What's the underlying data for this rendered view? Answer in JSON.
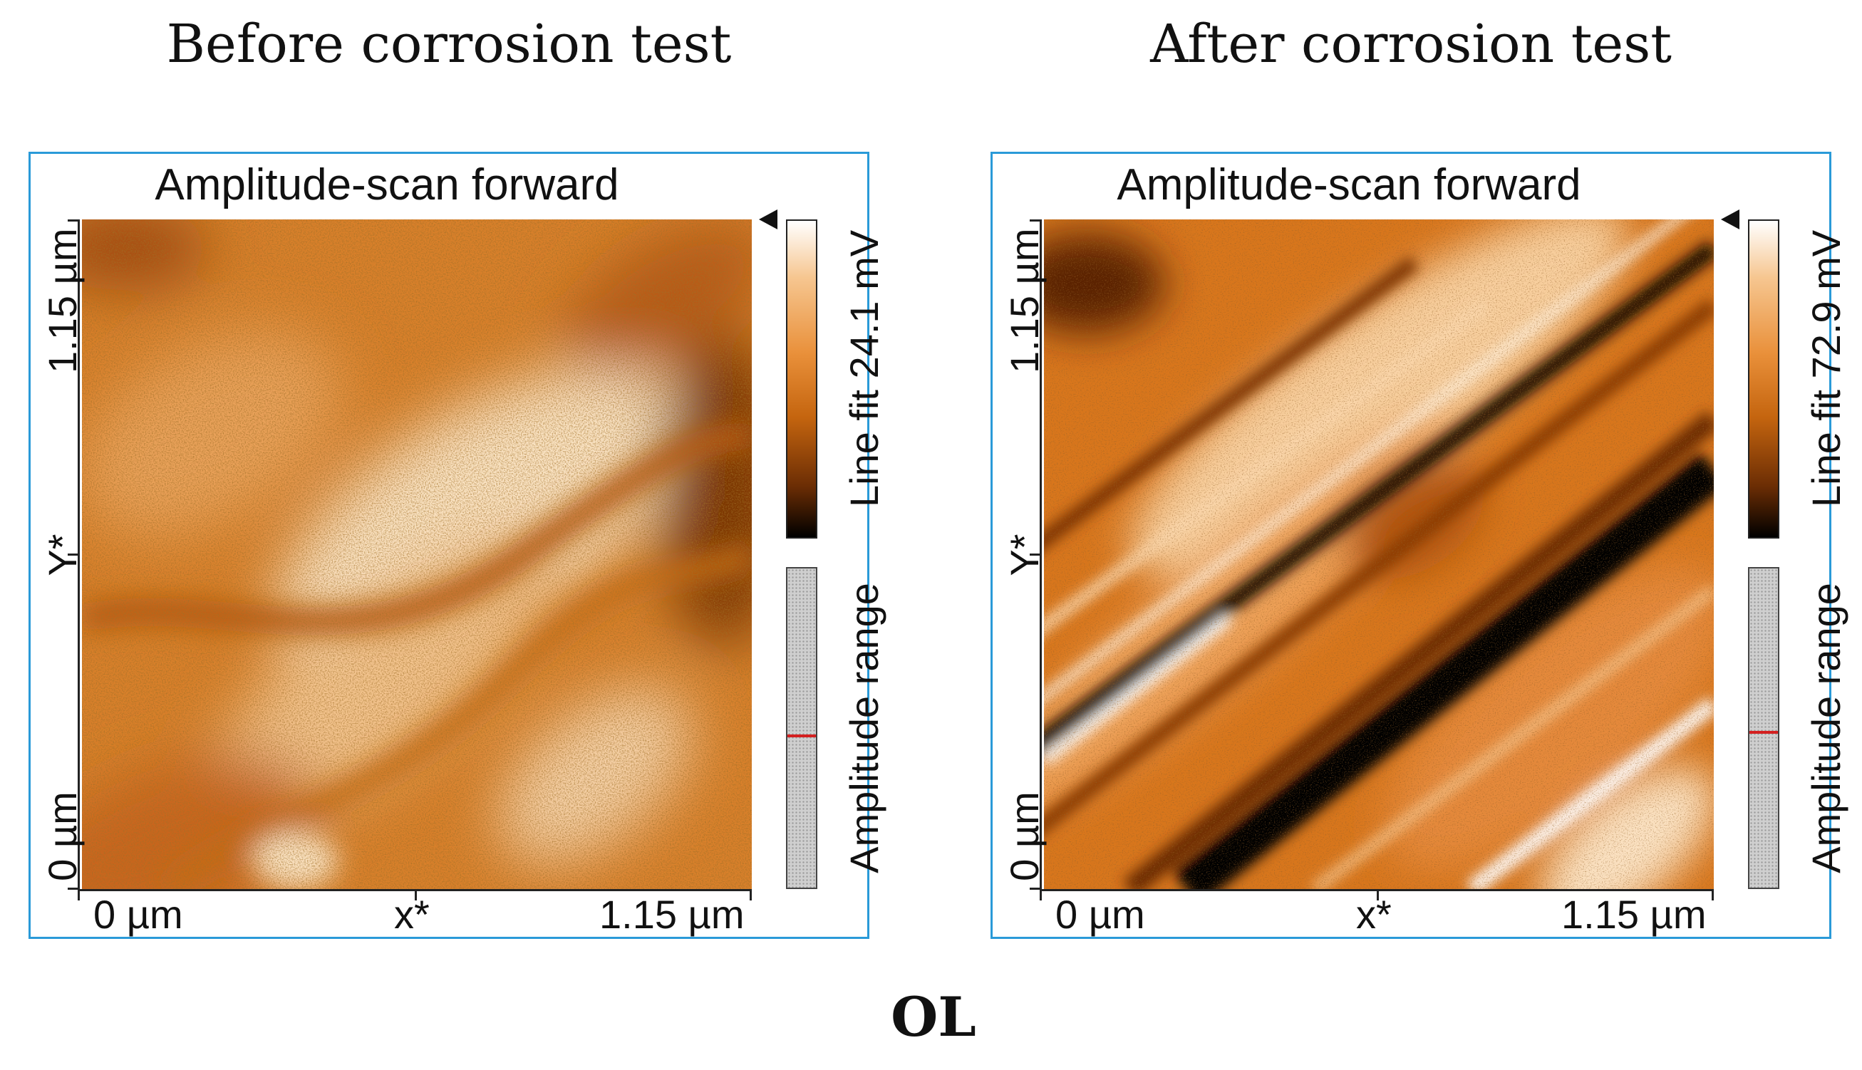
{
  "headings": {
    "before": "Before corrosion test",
    "after": "After corrosion test"
  },
  "panels": [
    {
      "title": "Amplitude-scan forward",
      "y_axis": {
        "top_label": "1.15 µm",
        "mid_label": "Y*",
        "bottom_label": "0 µm"
      },
      "x_axis": {
        "left_label": "0 µm",
        "mid_label": "x*",
        "right_label": "1.15 µm"
      },
      "colorbar_label": "Line fit 24.1 mV",
      "range_label": "Amplitude range",
      "range_marker_fraction": 0.52
    },
    {
      "title": "Amplitude-scan forward",
      "y_axis": {
        "top_label": "1.15 µm",
        "mid_label": "Y*",
        "bottom_label": "0 µm"
      },
      "x_axis": {
        "left_label": "0 µm",
        "mid_label": "x*",
        "right_label": "1.15 µm"
      },
      "colorbar_label": "Line fit 72.9 mV",
      "range_label": "Amplitude range",
      "range_marker_fraction": 0.51
    }
  ],
  "caption": "OL",
  "colors": {
    "frame": "#2a9ad8",
    "afm_base": "#d97a22",
    "range_marker": "#d42020"
  }
}
